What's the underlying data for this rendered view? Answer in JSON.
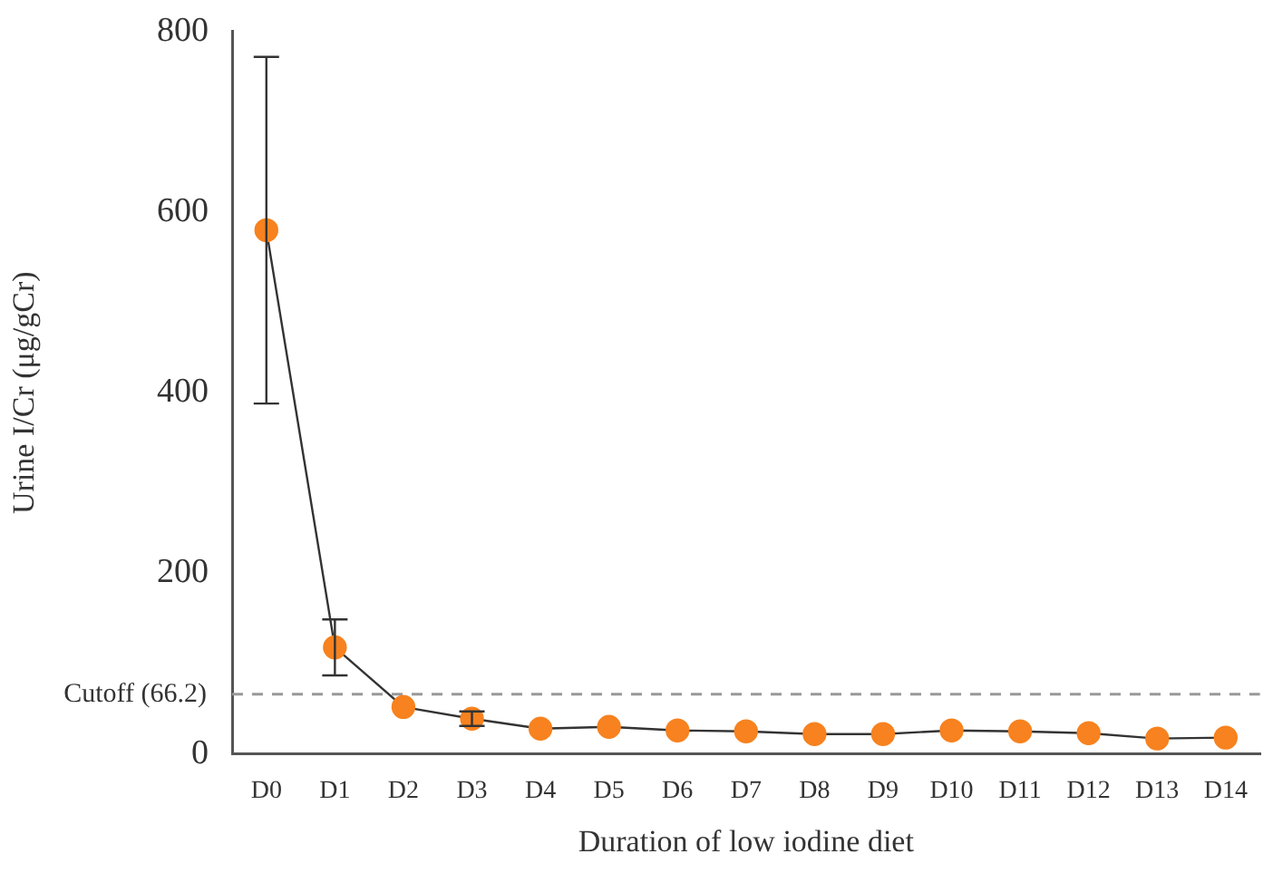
{
  "chart_data": {
    "type": "line",
    "xlabel": "Duration of low iodine diet",
    "ylabel": "Urine I/Cr (μg/gCr)",
    "categories": [
      "D0",
      "D1",
      "D2",
      "D3",
      "D4",
      "D5",
      "D6",
      "D7",
      "D8",
      "D9",
      "D10",
      "D11",
      "D12",
      "D13",
      "D14"
    ],
    "series": [
      {
        "color": "#f7821f",
        "values": [
          580,
          118,
          52,
          39,
          28,
          30,
          26,
          25,
          22,
          22,
          26,
          25,
          23,
          17,
          18
        ],
        "errors": [
          192,
          31,
          null,
          8,
          null,
          null,
          null,
          null,
          null,
          null,
          null,
          null,
          null,
          null,
          null
        ]
      }
    ],
    "ylim": [
      0,
      800
    ],
    "yticks": [
      0,
      200,
      400,
      600,
      800
    ],
    "ref_lines": [
      {
        "axis": "y",
        "value": 66.2,
        "label": "Cutoff (66.2)",
        "color": "#999999",
        "line_style": "dashed"
      }
    ],
    "grid": false,
    "legend": false,
    "marker": "circle",
    "line_style": "solid"
  }
}
